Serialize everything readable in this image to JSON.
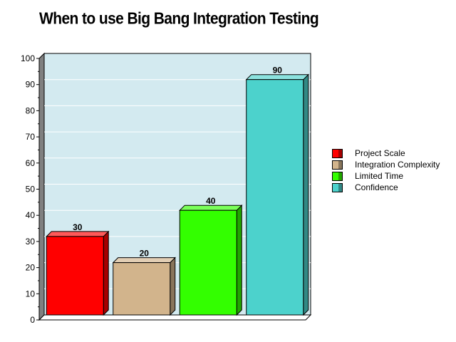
{
  "chart_data": {
    "type": "bar",
    "title": "When to use Big Bang Integration Testing",
    "categories": [
      "Project Scale",
      "Integration Complexity",
      "Limited Time",
      "Confidence"
    ],
    "values": [
      30,
      20,
      40,
      90
    ],
    "colors": [
      "#ff0000",
      "#d2b48c",
      "#33ff00",
      "#4cd2cc"
    ],
    "ylim": [
      0,
      100
    ],
    "yticks": [
      0,
      10,
      20,
      30,
      40,
      50,
      60,
      70,
      80,
      90,
      100
    ],
    "grid": true,
    "legend_position": "right",
    "plot_background": "#d3eaf0"
  }
}
